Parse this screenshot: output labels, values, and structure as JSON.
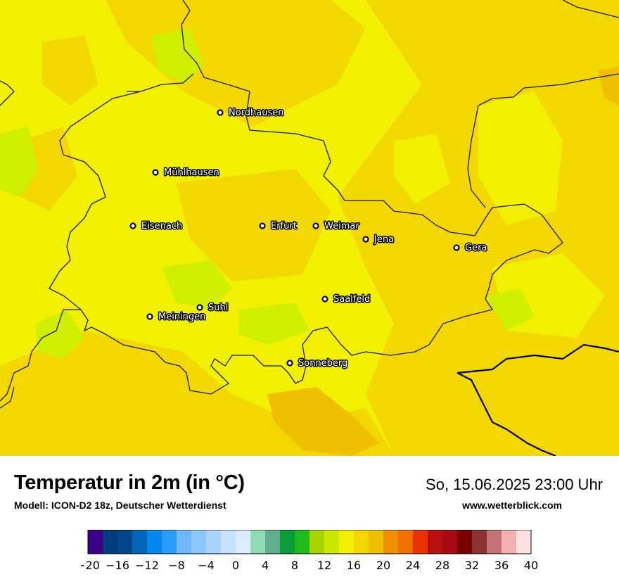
{
  "map": {
    "base_color": "#f0f000",
    "warm_color": "#f2d800",
    "cool_color": "#d0ee00",
    "hot_color": "#efbf00",
    "cities": [
      {
        "name": "Nordhausen"
      },
      {
        "name": "Mühlhausen"
      },
      {
        "name": "Eisenach"
      },
      {
        "name": "Erfurt"
      },
      {
        "name": "Weimar"
      },
      {
        "name": "Jena"
      },
      {
        "name": "Gera"
      },
      {
        "name": "Saalfeld"
      },
      {
        "name": "Suhl"
      },
      {
        "name": "Meiningen"
      },
      {
        "name": "Sonneberg"
      }
    ]
  },
  "header": {
    "title": "Temperatur in 2m (in °C)",
    "model": "Modell: ICON-D2 18z, Deutscher Wetterdienst",
    "datetime": "So, 15.06.2025 23:00 Uhr",
    "website": "www.wetterblick.com"
  },
  "legend": {
    "min": -20,
    "max": 40,
    "step": 2,
    "tick_labels": [
      "−20",
      "−16",
      "−12",
      "−8",
      "−4",
      "0",
      "4",
      "8",
      "12",
      "16",
      "20",
      "24",
      "28",
      "32",
      "36",
      "40"
    ],
    "colors": [
      "#3b0088",
      "#003c7d",
      "#00448a",
      "#0064b8",
      "#0088ee",
      "#2a9bff",
      "#6fb8ff",
      "#8cc6ff",
      "#a9d4ff",
      "#c6e2ff",
      "#dcecff",
      "#8edbb5",
      "#5fae8c",
      "#0c9a3a",
      "#1fbb1a",
      "#a6d400",
      "#cde800",
      "#f0f000",
      "#f2d800",
      "#efbf00",
      "#f09000",
      "#f07000",
      "#e83000",
      "#bb1010",
      "#a80a12",
      "#7a0000",
      "#8b3232",
      "#c47474",
      "#f2b0b0",
      "#ffe0e0"
    ]
  }
}
